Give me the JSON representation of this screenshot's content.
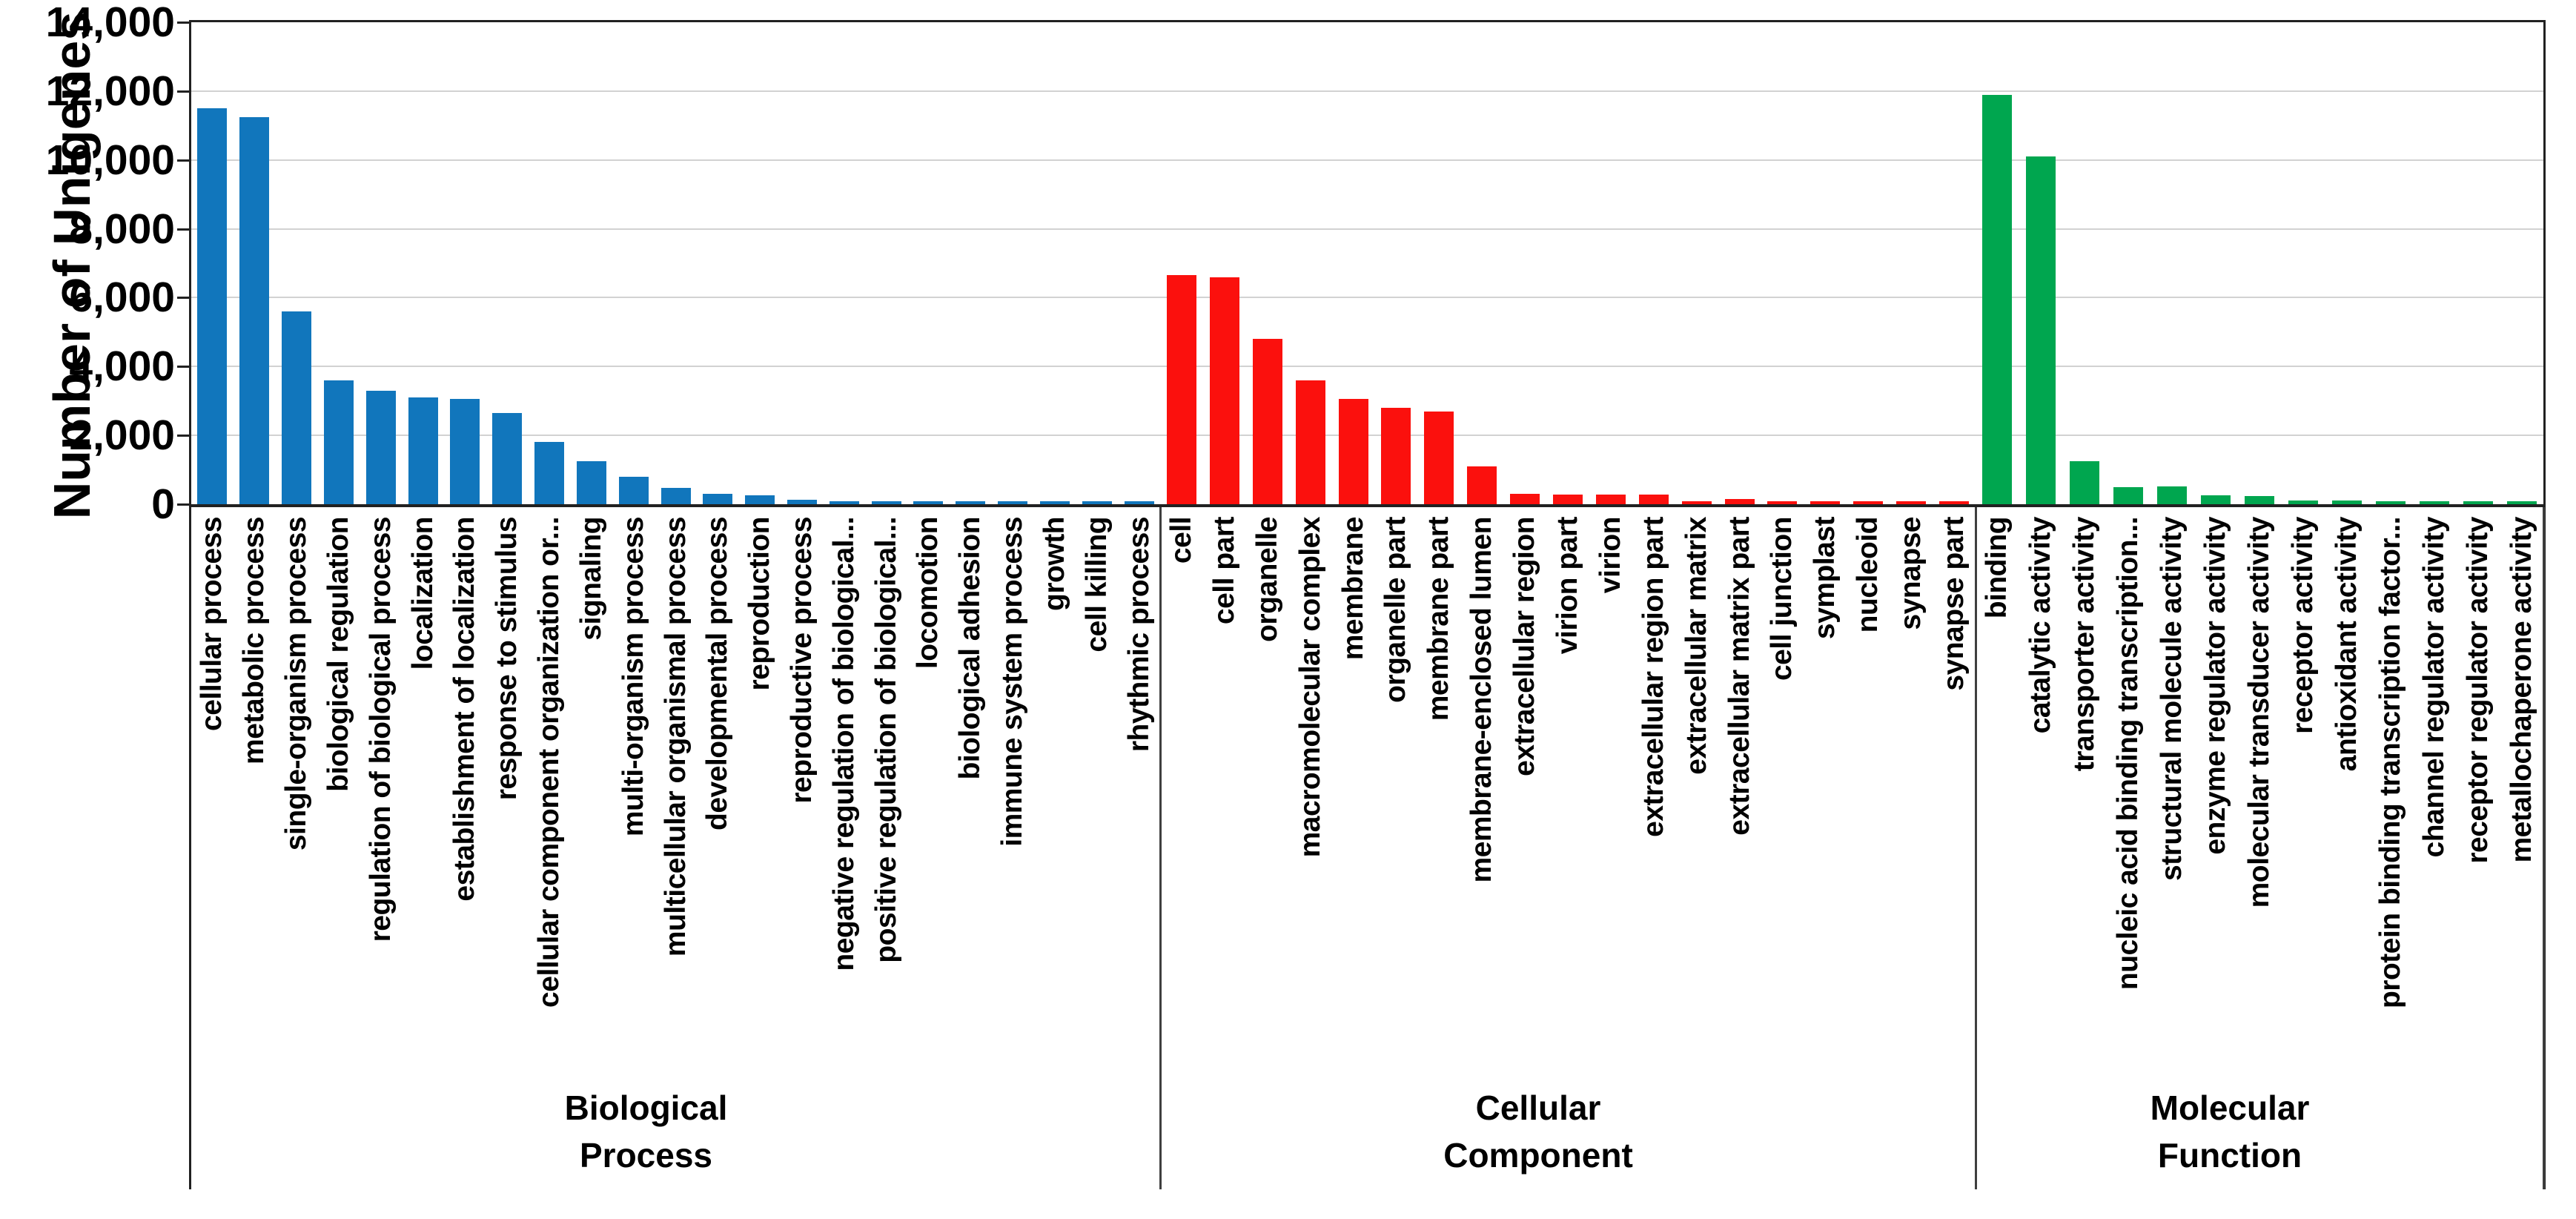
{
  "chart_data": {
    "type": "bar",
    "title": "",
    "xlabel": "",
    "ylabel": "Number of Unigenes",
    "ylim": [
      0,
      14000
    ],
    "ytick_step": 2000,
    "ytick_labels": [
      "0",
      "2,000",
      "4,000",
      "6,000",
      "8,000",
      "10,000",
      "12,000",
      "14,000"
    ],
    "grid": true,
    "legend": "none",
    "groups": [
      {
        "name": "Biological Process",
        "name_lines": [
          "Biological",
          "Process"
        ],
        "color": "#1176BC",
        "categories": [
          "cellular process",
          "metabolic process",
          "single-organism process",
          "biological regulation",
          "regulation of biological process",
          "localization",
          "establishment of localization",
          "response to stimulus",
          "cellular component organization or...",
          "signaling",
          "multi-organism process",
          "multicellular organismal process",
          "developmental process",
          "reproduction",
          "reproductive process",
          "negative regulation of biological...",
          "positive regulation of biological...",
          "locomotion",
          "biological adhesion",
          "immune system process",
          "growth",
          "cell killing",
          "rhythmic process"
        ],
        "values": [
          11500,
          11250,
          5600,
          3600,
          3300,
          3100,
          3050,
          2650,
          1800,
          1250,
          800,
          480,
          300,
          260,
          130,
          90,
          90,
          80,
          70,
          80,
          70,
          90,
          60
        ]
      },
      {
        "name": "Cellular Component",
        "name_lines": [
          "Cellular",
          "Component"
        ],
        "color": "#FB100D",
        "categories": [
          "cell",
          "cell part",
          "organelle",
          "macromolecular complex",
          "membrane",
          "organelle part",
          "membrane part",
          "membrane-enclosed lumen",
          "extracellular region",
          "virion part",
          "virion",
          "extracellular region part",
          "extracellular matrix",
          "extracellular matrix part",
          "cell junction",
          "symplast",
          "nucleoid",
          "synapse",
          "synapse part"
        ],
        "values": [
          6650,
          6600,
          4800,
          3600,
          3050,
          2800,
          2700,
          1100,
          300,
          280,
          280,
          280,
          90,
          150,
          90,
          80,
          80,
          80,
          70
        ]
      },
      {
        "name": "Molecular Function",
        "name_lines": [
          "Molecular",
          "Function"
        ],
        "color": "#00A64F",
        "categories": [
          "binding",
          "catalytic activity",
          "transporter activity",
          "nucleic acid binding transcription...",
          "structural molecule activity",
          "enzyme regulator activity",
          "molecular transducer activity",
          "receptor activity",
          "antioxidant activity",
          "protein binding transcription factor...",
          "channel regulator activity",
          "receptor regulator activity",
          "metallochaperone activity"
        ],
        "values": [
          11900,
          10100,
          1250,
          500,
          520,
          260,
          240,
          100,
          100,
          80,
          90,
          70,
          70
        ]
      }
    ]
  }
}
